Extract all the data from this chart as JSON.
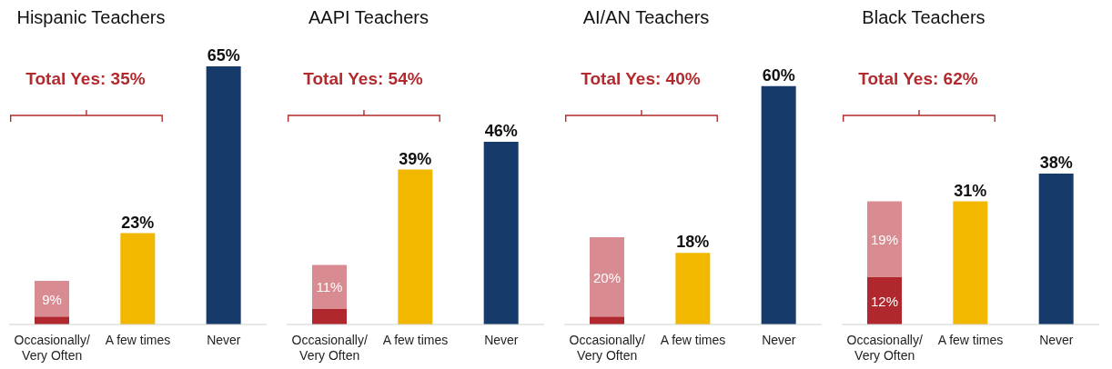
{
  "chart_data": [
    {
      "type": "bar",
      "title": "Hispanic Teachers",
      "annotations": [
        "Total Yes: 35%"
      ],
      "stacked": true,
      "categories": [
        "Occasionally/ Very Often",
        "A few times",
        "Never"
      ],
      "series": [
        {
          "color": "#b0272d",
          "values": [
            2,
            null,
            null
          ],
          "value_labels": [
            null,
            null,
            null
          ]
        },
        {
          "color": "#d98b92",
          "colors": [
            "#d98b92",
            "#f2b800",
            "#163a6a"
          ],
          "values": [
            9,
            23,
            65
          ],
          "value_labels": [
            "9%",
            "23%",
            "65%"
          ]
        }
      ]
    },
    {
      "type": "bar",
      "title": "AAPI Teachers",
      "annotations": [
        "Total Yes: 54%"
      ],
      "stacked": true,
      "categories": [
        "Occasionally/ Very Often",
        "A few times",
        "Never"
      ],
      "series": [
        {
          "color": "#b0272d",
          "values": [
            4,
            null,
            null
          ],
          "value_labels": [
            null,
            null,
            null
          ]
        },
        {
          "color": "#d98b92",
          "colors": [
            "#d98b92",
            "#f2b800",
            "#163a6a"
          ],
          "values": [
            11,
            39,
            46
          ],
          "value_labels": [
            "11%",
            "39%",
            "46%"
          ]
        }
      ]
    },
    {
      "type": "bar",
      "title": "AI/AN Teachers",
      "annotations": [
        "Total Yes: 40%"
      ],
      "stacked": true,
      "categories": [
        "Occasionally/ Very Often",
        "A few times",
        "Never"
      ],
      "series": [
        {
          "color": "#b0272d",
          "values": [
            2,
            null,
            null
          ],
          "value_labels": [
            null,
            null,
            null
          ]
        },
        {
          "color": "#d98b92",
          "colors": [
            "#d98b92",
            "#f2b800",
            "#163a6a"
          ],
          "values": [
            20,
            18,
            60
          ],
          "value_labels": [
            "20%",
            "18%",
            "60%"
          ]
        }
      ]
    },
    {
      "type": "bar",
      "title": "Black Teachers",
      "annotations": [
        "Total Yes: 62%"
      ],
      "stacked": true,
      "categories": [
        "Occasionally/ Very Often",
        "A few times",
        "Never"
      ],
      "series": [
        {
          "color": "#b0272d",
          "values": [
            12,
            null,
            null
          ],
          "value_labels": [
            "12%",
            null,
            null
          ]
        },
        {
          "color": "#d98b92",
          "colors": [
            "#d98b92",
            "#f2b800",
            "#163a6a"
          ],
          "values": [
            19,
            31,
            38
          ],
          "value_labels": [
            "19%",
            "31%",
            "38%"
          ]
        }
      ]
    }
  ]
}
